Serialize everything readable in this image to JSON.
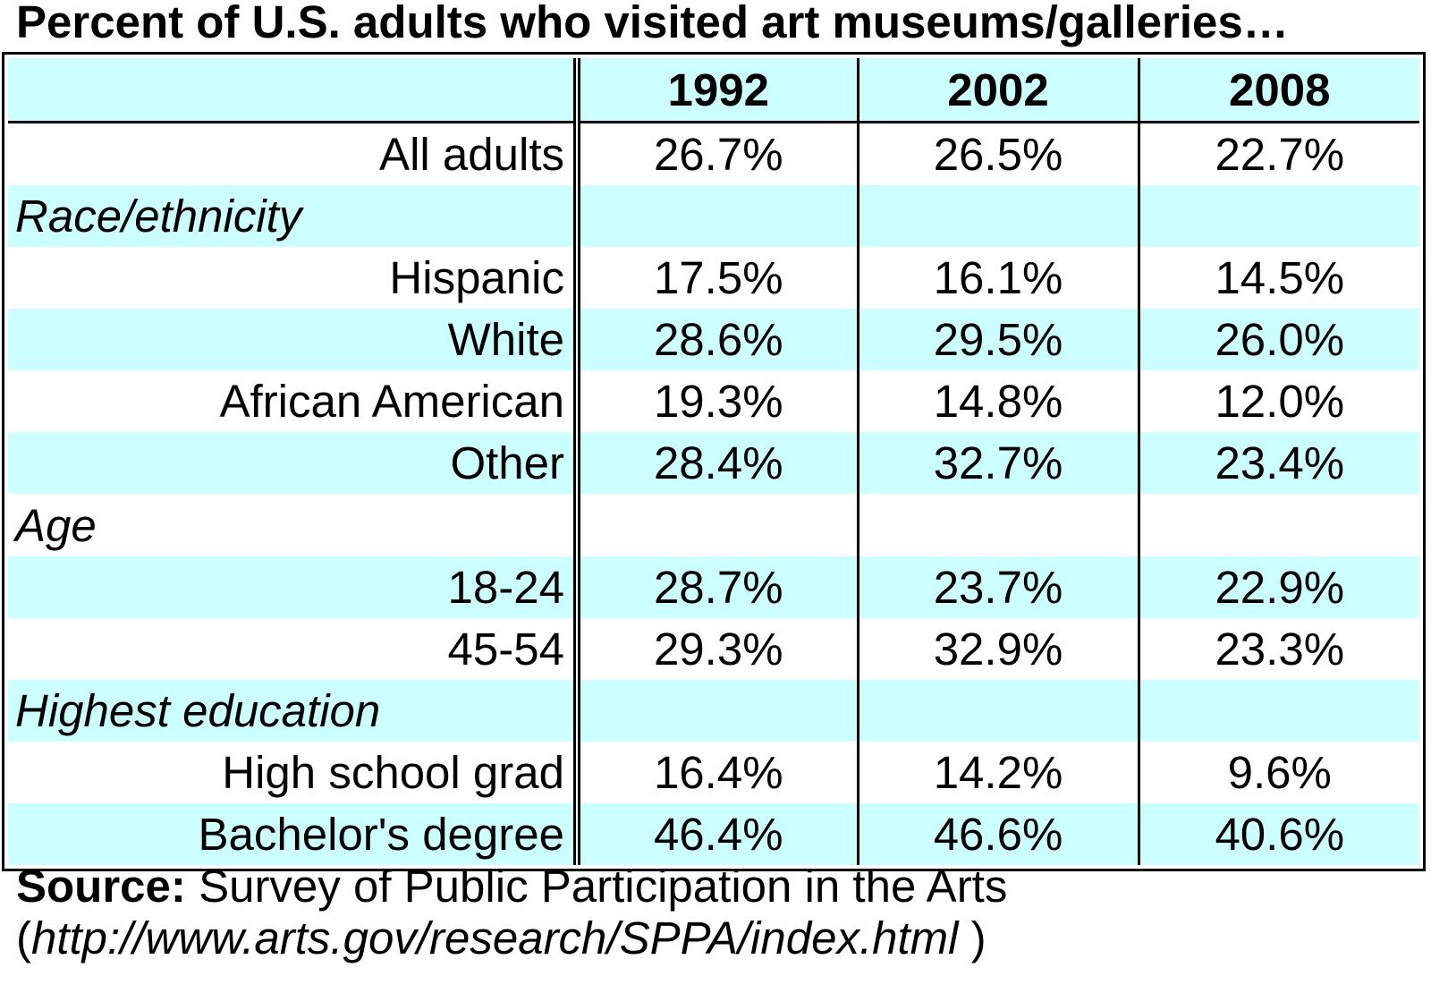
{
  "title": "Percent of U.S. adults who visited art museums/galleries…",
  "chart_data": {
    "type": "table",
    "columns": [
      "1992",
      "2002",
      "2008"
    ],
    "rows": [
      {
        "kind": "data",
        "label": "All adults",
        "values": [
          "26.7%",
          "26.5%",
          "22.7%"
        ]
      },
      {
        "kind": "group",
        "label": "Race/ethnicity"
      },
      {
        "kind": "data",
        "label": "Hispanic",
        "values": [
          "17.5%",
          "16.1%",
          "14.5%"
        ]
      },
      {
        "kind": "data",
        "label": "White",
        "values": [
          "28.6%",
          "29.5%",
          "26.0%"
        ]
      },
      {
        "kind": "data",
        "label": "African American",
        "values": [
          "19.3%",
          "14.8%",
          "12.0%"
        ]
      },
      {
        "kind": "data",
        "label": "Other",
        "values": [
          "28.4%",
          "32.7%",
          "23.4%"
        ]
      },
      {
        "kind": "group",
        "label": "Age"
      },
      {
        "kind": "data",
        "label": "18-24",
        "values": [
          "28.7%",
          "23.7%",
          "22.9%"
        ]
      },
      {
        "kind": "data",
        "label": "45-54",
        "values": [
          "29.3%",
          "32.9%",
          "23.3%"
        ]
      },
      {
        "kind": "group",
        "label": "Highest education"
      },
      {
        "kind": "data",
        "label": "High school grad",
        "values": [
          "16.4%",
          "14.2%",
          "9.6%"
        ]
      },
      {
        "kind": "data",
        "label": "Bachelor's degree",
        "values": [
          "46.4%",
          "46.6%",
          "40.6%"
        ]
      }
    ]
  },
  "source": {
    "label": "Source:",
    "text": "Survey of Public Participation in the Arts",
    "url_open": "(",
    "url": "http://www.arts.gov/research/SPPA/index.html",
    "url_close": " )"
  },
  "colors": {
    "band": "#ccffff",
    "border": "#000000"
  }
}
